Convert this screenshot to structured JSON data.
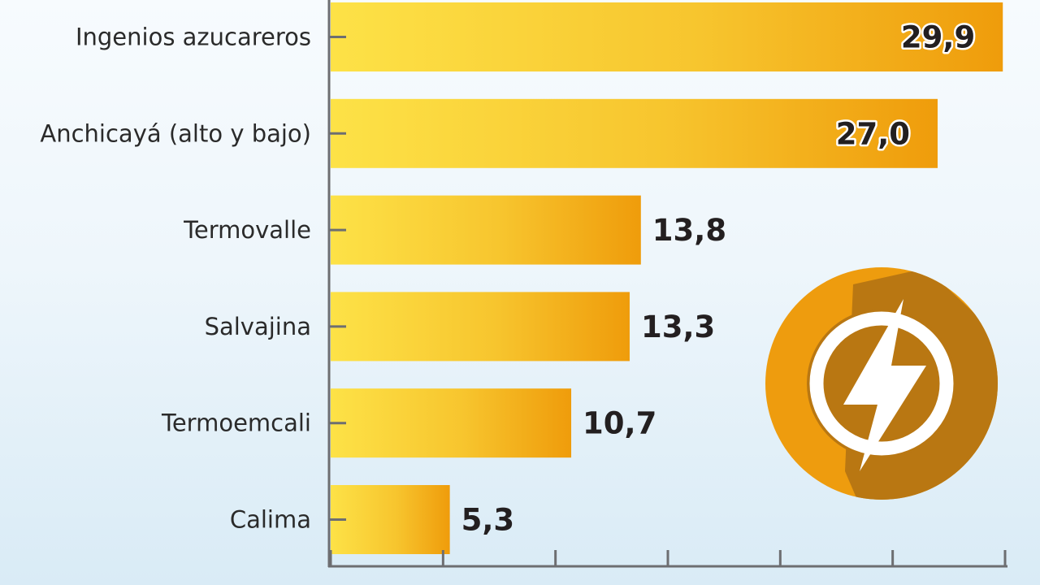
{
  "chart_data": {
    "type": "bar",
    "orientation": "horizontal",
    "categories": [
      "Ingenios azucareros",
      "Anchicayá (alto y bajo)",
      "Termovalle",
      "Salvajina",
      "Termoemcali",
      "Calima"
    ],
    "values": [
      29.9,
      27.0,
      13.8,
      13.3,
      10.7,
      5.3
    ],
    "value_labels": [
      "29,9",
      "27,0",
      "13,8",
      "13,3",
      "10,7",
      "5,3"
    ],
    "xlim": [
      0,
      30
    ],
    "x_tick_step": 5,
    "grid": false,
    "legend": "none",
    "title": "",
    "xlabel": "",
    "ylabel": ""
  },
  "colors": {
    "bar_light": "#fde247",
    "bar_dark": "#ef9c0b",
    "axis": "#6d6e71",
    "icon_ring": "#ee9c0e",
    "icon_inner": "#b97712",
    "icon_symbol": "#ffffff"
  },
  "icons": {
    "badge": "power-lightning-icon"
  }
}
